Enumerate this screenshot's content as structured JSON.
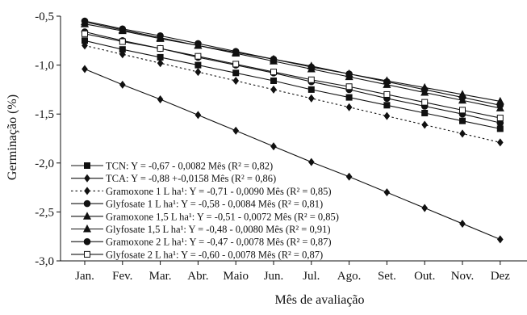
{
  "chart_data": {
    "type": "line",
    "title": "",
    "xlabel": "Mês de avaliação",
    "ylabel": "Germinação (%)",
    "ylim": [
      -3.0,
      -0.5
    ],
    "yticks": [
      "-0,5",
      "-1,0",
      "-1,5",
      "-2,0",
      "-2,5",
      "-3,0"
    ],
    "categories": [
      "Jan.",
      "Fev.",
      "Mar.",
      "Abr.",
      "Maio",
      "Jun.",
      "Jul.",
      "Ago.",
      "Set.",
      "Out.",
      "Nov.",
      "Dez"
    ],
    "grid": false,
    "legend_position": "bottom-left",
    "series": [
      {
        "name": "TCN: Y = -0,67 - 0,0082 Mês (R² = 0,82)",
        "marker": "square-filled",
        "line": "solid",
        "values": [
          -0.75,
          -0.84,
          -0.92,
          -1.0,
          -1.08,
          -1.16,
          -1.25,
          -1.33,
          -1.41,
          -1.49,
          -1.57,
          -1.65
        ]
      },
      {
        "name": "TCA: Y = -0,88 +-0,0158 Mês (R² = 0,86)",
        "marker": "diamond-filled",
        "line": "solid",
        "values": [
          -1.04,
          -1.2,
          -1.35,
          -1.51,
          -1.67,
          -1.83,
          -1.99,
          -2.14,
          -2.3,
          -2.46,
          -2.62,
          -2.78
        ]
      },
      {
        "name": "Gramoxone 1 L ha¹: Y = -0,71 - 0,0090 Mês (R² = 0,85)",
        "marker": "diamond-filled",
        "line": "dotted",
        "values": [
          -0.8,
          -0.89,
          -0.98,
          -1.07,
          -1.16,
          -1.25,
          -1.34,
          -1.43,
          -1.52,
          -1.61,
          -1.7,
          -1.79
        ]
      },
      {
        "name": "Glyfosate 1 L ha¹: Y = -0,58 - 0,0084 Mês (R² = 0,81)",
        "marker": "circle-filled",
        "line": "solid",
        "values": [
          -0.66,
          -0.75,
          -0.83,
          -0.92,
          -1.0,
          -1.08,
          -1.17,
          -1.25,
          -1.34,
          -1.42,
          -1.5,
          -1.59
        ]
      },
      {
        "name": "Gramoxone 1,5 L ha¹: Y = -0,51 - 0,0072 Mês (R² = 0,85)",
        "marker": "triangle-filled",
        "line": "solid",
        "values": [
          -0.58,
          -0.65,
          -0.73,
          -0.8,
          -0.87,
          -0.94,
          -1.01,
          -1.09,
          -1.16,
          -1.23,
          -1.3,
          -1.37
        ]
      },
      {
        "name": "Glyfosate 1,5 L ha¹: Y = -0,48 - 0,0080 Mês (R² = 0,91)",
        "marker": "triangle-filled",
        "line": "solid",
        "values": [
          -0.56,
          -0.64,
          -0.72,
          -0.8,
          -0.88,
          -0.96,
          -1.04,
          -1.12,
          -1.2,
          -1.28,
          -1.36,
          -1.44
        ]
      },
      {
        "name": "Gramoxone 2 L ha¹: Y = -0,47 - 0,0078 Mês (R² = 0,87)",
        "marker": "circle-filled",
        "line": "solid",
        "values": [
          -0.55,
          -0.63,
          -0.7,
          -0.78,
          -0.86,
          -0.94,
          -1.02,
          -1.09,
          -1.17,
          -1.25,
          -1.33,
          -1.41
        ]
      },
      {
        "name": "Glyfosate 2 L ha¹: Y = -0,60 - 0,0078 Mês (R² = 0,87)",
        "marker": "square-open",
        "line": "solid",
        "values": [
          -0.68,
          -0.76,
          -0.83,
          -0.91,
          -0.99,
          -1.07,
          -1.15,
          -1.22,
          -1.3,
          -1.38,
          -1.46,
          -1.54
        ]
      }
    ]
  }
}
